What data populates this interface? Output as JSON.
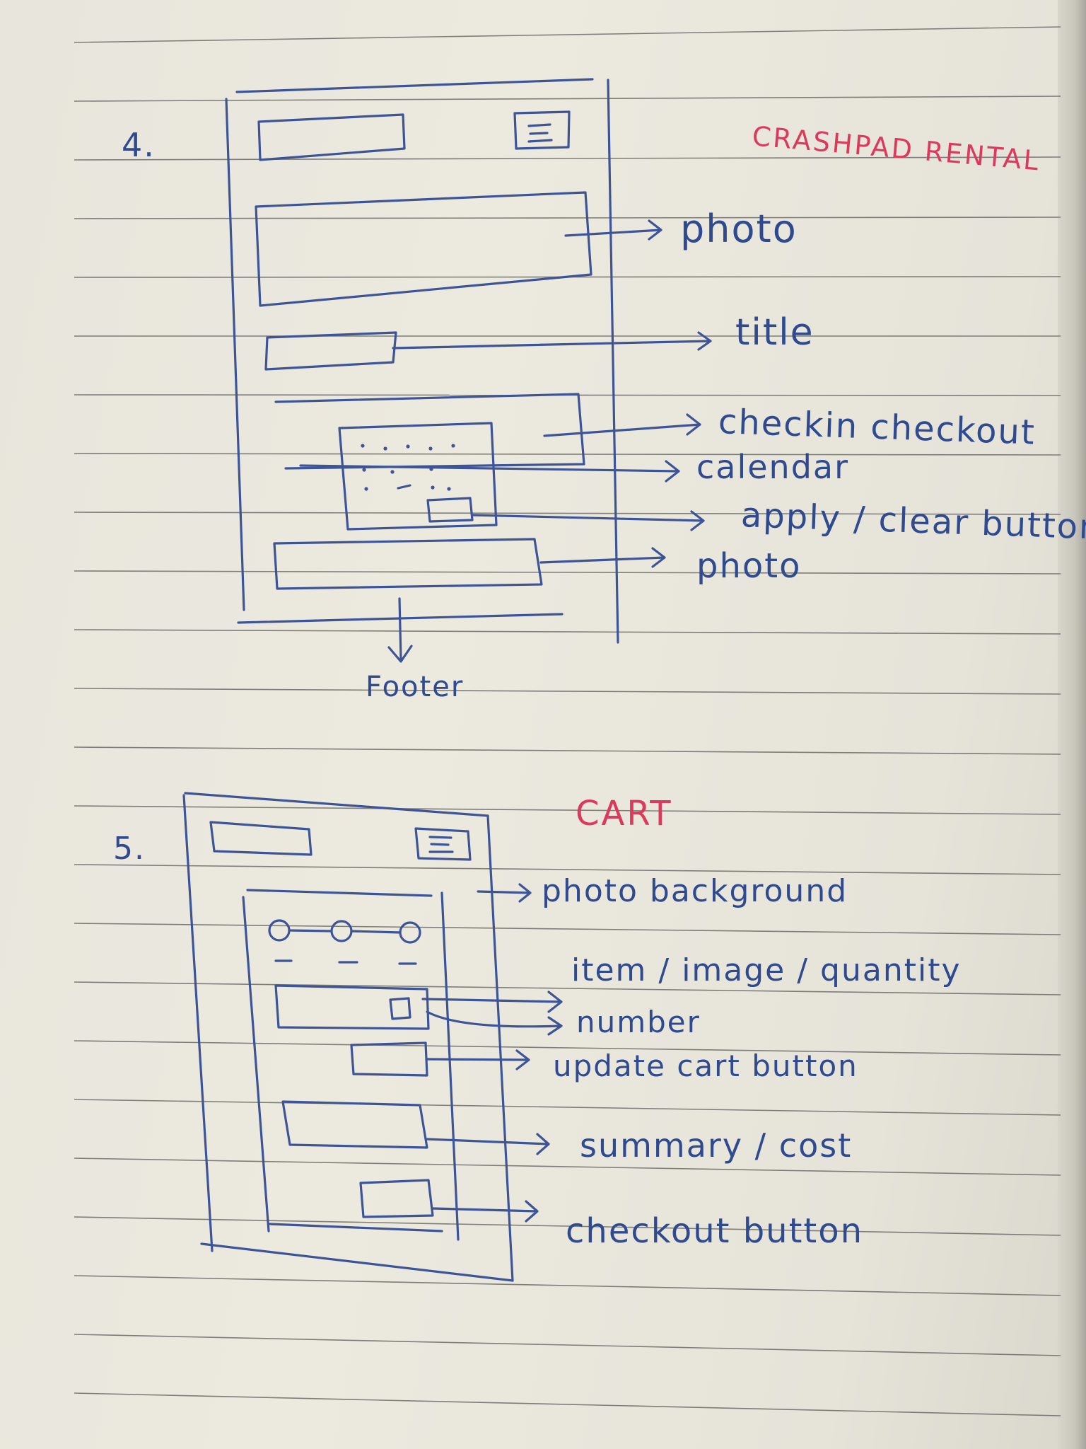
{
  "ink_color": "#3d5596",
  "accent_color": "#dc3a5c",
  "paper_color": "#eceadf",
  "sketch4": {
    "number": "4.",
    "title": "CRASHPAD RENTAL",
    "annotations": {
      "photo_top": "photo",
      "title": "title",
      "checkin": "checkin checkout",
      "calendar": "calendar",
      "apply": "apply / clear button",
      "photo_bottom": "photo"
    },
    "footer": "Footer"
  },
  "sketch5": {
    "number": "5.",
    "title": "CART",
    "annotations": {
      "background": "photo background",
      "item": "item / image / quantity",
      "number": "number",
      "update": "update cart button",
      "summary": "summary / cost",
      "checkout": "checkout button"
    }
  }
}
